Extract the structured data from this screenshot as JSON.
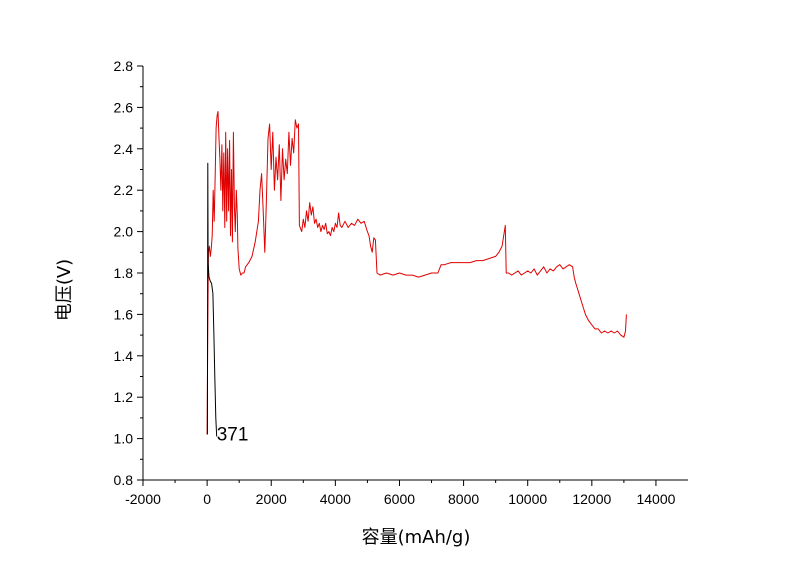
{
  "chart_data": {
    "type": "line",
    "xlabel": "容量(mAh/g)",
    "ylabel": "电压(V)",
    "xlim": [
      -2000,
      15000
    ],
    "ylim": [
      0.8,
      2.8
    ],
    "x_ticks": [
      -2000,
      0,
      2000,
      4000,
      6000,
      8000,
      10000,
      12000,
      14000
    ],
    "x_tick_labels": [
      "-2000",
      "0",
      "2000",
      "4000",
      "6000",
      "8000",
      "10000",
      "12000",
      "14000"
    ],
    "y_ticks": [
      0.8,
      1.0,
      1.2,
      1.4,
      1.6,
      1.8,
      2.0,
      2.2,
      2.4,
      2.6,
      2.8
    ],
    "y_tick_labels": [
      "0.8",
      "1.0",
      "1.2",
      "1.4",
      "1.6",
      "1.8",
      "2.0",
      "2.2",
      "2.4",
      "2.6",
      "2.8"
    ],
    "grid": false,
    "legend": "none",
    "annotations": [
      {
        "text": "371",
        "x": 300,
        "y": 1.02
      }
    ],
    "series": [
      {
        "color": "#e00000",
        "points": [
          [
            0,
            1.02
          ],
          [
            20,
            1.55
          ],
          [
            40,
            1.9
          ],
          [
            70,
            1.93
          ],
          [
            100,
            1.88
          ],
          [
            130,
            1.92
          ],
          [
            160,
            1.98
          ],
          [
            190,
            2.2
          ],
          [
            220,
            2.05
          ],
          [
            250,
            2.25
          ],
          [
            280,
            2.5
          ],
          [
            310,
            2.56
          ],
          [
            340,
            2.58
          ],
          [
            370,
            2.45
          ],
          [
            400,
            2.35
          ],
          [
            430,
            2.2
          ],
          [
            460,
            2.42
          ],
          [
            490,
            2.1
          ],
          [
            520,
            2.38
          ],
          [
            550,
            2.02
          ],
          [
            580,
            2.48
          ],
          [
            610,
            2.05
          ],
          [
            640,
            2.4
          ],
          [
            670,
            2.1
          ],
          [
            700,
            2.44
          ],
          [
            730,
            1.98
          ],
          [
            760,
            2.3
          ],
          [
            790,
            1.95
          ],
          [
            820,
            2.48
          ],
          [
            850,
            2.12
          ],
          [
            880,
            2.0
          ],
          [
            910,
            2.2
          ],
          [
            940,
            2.08
          ],
          [
            960,
            1.92
          ],
          [
            1000,
            1.82
          ],
          [
            1050,
            1.79
          ],
          [
            1100,
            1.8
          ],
          [
            1150,
            1.8
          ],
          [
            1200,
            1.83
          ],
          [
            1300,
            1.85
          ],
          [
            1400,
            1.88
          ],
          [
            1500,
            1.95
          ],
          [
            1600,
            2.05
          ],
          [
            1650,
            2.2
          ],
          [
            1700,
            2.28
          ],
          [
            1750,
            2.1
          ],
          [
            1800,
            1.9
          ],
          [
            1850,
            2.15
          ],
          [
            1900,
            2.45
          ],
          [
            1950,
            2.52
          ],
          [
            2000,
            2.3
          ],
          [
            2050,
            2.48
          ],
          [
            2100,
            2.2
          ],
          [
            2150,
            2.36
          ],
          [
            2200,
            2.25
          ],
          [
            2250,
            2.42
          ],
          [
            2300,
            2.15
          ],
          [
            2350,
            2.4
          ],
          [
            2400,
            2.25
          ],
          [
            2450,
            2.35
          ],
          [
            2500,
            2.28
          ],
          [
            2550,
            2.48
          ],
          [
            2600,
            2.32
          ],
          [
            2650,
            2.45
          ],
          [
            2700,
            2.38
          ],
          [
            2750,
            2.54
          ],
          [
            2800,
            2.5
          ],
          [
            2850,
            2.52
          ],
          [
            2880,
            2.03
          ],
          [
            2950,
            2.0
          ],
          [
            3000,
            2.06
          ],
          [
            3050,
            2.02
          ],
          [
            3100,
            2.1
          ],
          [
            3150,
            2.05
          ],
          [
            3200,
            2.14
          ],
          [
            3250,
            2.08
          ],
          [
            3300,
            2.12
          ],
          [
            3350,
            2.04
          ],
          [
            3400,
            2.06
          ],
          [
            3450,
            2.02
          ],
          [
            3500,
            2.04
          ],
          [
            3550,
            2.0
          ],
          [
            3600,
            2.03
          ],
          [
            3650,
            2.01
          ],
          [
            3700,
            2.04
          ],
          [
            3750,
            1.99
          ],
          [
            3800,
            2.0
          ],
          [
            3850,
            1.98
          ],
          [
            3900,
            2.02
          ],
          [
            3950,
            2.0
          ],
          [
            4000,
            2.04
          ],
          [
            4050,
            2.02
          ],
          [
            4100,
            2.09
          ],
          [
            4150,
            2.03
          ],
          [
            4200,
            2.02
          ],
          [
            4300,
            2.05
          ],
          [
            4400,
            2.02
          ],
          [
            4500,
            2.04
          ],
          [
            4600,
            2.03
          ],
          [
            4700,
            2.06
          ],
          [
            4800,
            2.04
          ],
          [
            4900,
            2.05
          ],
          [
            5000,
            2.0
          ],
          [
            5050,
            1.98
          ],
          [
            5100,
            1.93
          ],
          [
            5150,
            1.9
          ],
          [
            5200,
            1.97
          ],
          [
            5250,
            1.96
          ],
          [
            5300,
            1.8
          ],
          [
            5400,
            1.79
          ],
          [
            5600,
            1.8
          ],
          [
            5800,
            1.79
          ],
          [
            6000,
            1.8
          ],
          [
            6200,
            1.79
          ],
          [
            6400,
            1.79
          ],
          [
            6600,
            1.78
          ],
          [
            6800,
            1.79
          ],
          [
            7000,
            1.8
          ],
          [
            7200,
            1.8
          ],
          [
            7300,
            1.84
          ],
          [
            7400,
            1.84
          ],
          [
            7600,
            1.85
          ],
          [
            7800,
            1.85
          ],
          [
            8000,
            1.85
          ],
          [
            8200,
            1.85
          ],
          [
            8400,
            1.86
          ],
          [
            8600,
            1.86
          ],
          [
            8800,
            1.87
          ],
          [
            9000,
            1.88
          ],
          [
            9100,
            1.9
          ],
          [
            9200,
            1.93
          ],
          [
            9250,
            1.98
          ],
          [
            9300,
            2.03
          ],
          [
            9330,
            1.8
          ],
          [
            9400,
            1.8
          ],
          [
            9500,
            1.79
          ],
          [
            9600,
            1.8
          ],
          [
            9700,
            1.81
          ],
          [
            9800,
            1.79
          ],
          [
            9900,
            1.8
          ],
          [
            10000,
            1.81
          ],
          [
            10100,
            1.8
          ],
          [
            10200,
            1.82
          ],
          [
            10300,
            1.79
          ],
          [
            10400,
            1.81
          ],
          [
            10500,
            1.83
          ],
          [
            10600,
            1.8
          ],
          [
            10700,
            1.82
          ],
          [
            10800,
            1.81
          ],
          [
            10900,
            1.83
          ],
          [
            11000,
            1.84
          ],
          [
            11100,
            1.82
          ],
          [
            11200,
            1.83
          ],
          [
            11300,
            1.84
          ],
          [
            11400,
            1.83
          ],
          [
            11450,
            1.78
          ],
          [
            11500,
            1.75
          ],
          [
            11600,
            1.7
          ],
          [
            11700,
            1.65
          ],
          [
            11800,
            1.6
          ],
          [
            11900,
            1.57
          ],
          [
            12000,
            1.55
          ],
          [
            12100,
            1.53
          ],
          [
            12200,
            1.53
          ],
          [
            12300,
            1.51
          ],
          [
            12400,
            1.52
          ],
          [
            12500,
            1.51
          ],
          [
            12600,
            1.52
          ],
          [
            12700,
            1.51
          ],
          [
            12800,
            1.52
          ],
          [
            12900,
            1.5
          ],
          [
            13000,
            1.49
          ],
          [
            13050,
            1.52
          ],
          [
            13080,
            1.6
          ]
        ]
      },
      {
        "color": "#000000",
        "points": [
          [
            10,
            1.02
          ],
          [
            20,
            2.33
          ],
          [
            30,
            1.85
          ],
          [
            60,
            1.78
          ],
          [
            100,
            1.76
          ],
          [
            140,
            1.75
          ],
          [
            180,
            1.7
          ],
          [
            210,
            1.5
          ],
          [
            240,
            1.3
          ],
          [
            270,
            1.1
          ],
          [
            300,
            1.01
          ]
        ]
      }
    ]
  }
}
